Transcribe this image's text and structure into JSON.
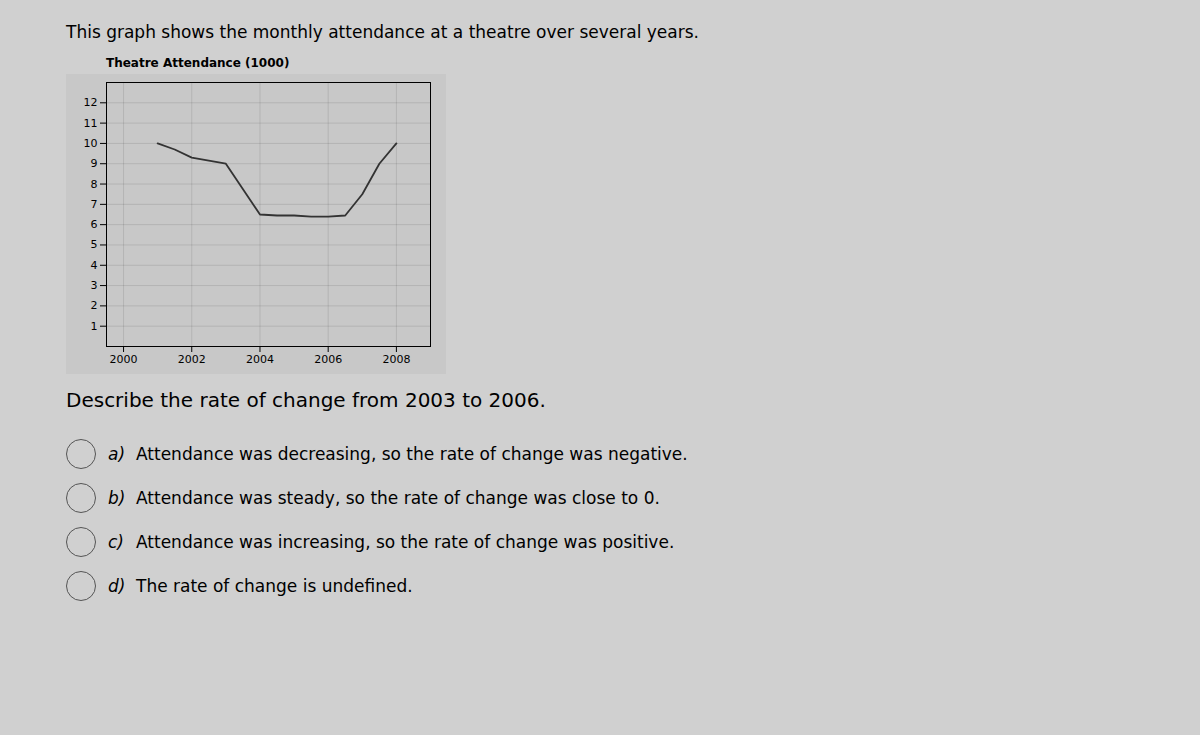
{
  "chart_data": {
    "type": "line",
    "title": "Theatre Attendance (1000)",
    "x": [
      2001,
      2001.5,
      2002,
      2003,
      2004,
      2004.5,
      2005,
      2005.5,
      2006,
      2006.5,
      2007,
      2007.5,
      2008
    ],
    "values": [
      10.0,
      9.7,
      9.3,
      9.0,
      6.5,
      6.45,
      6.45,
      6.4,
      6.4,
      6.45,
      7.5,
      9.0,
      10.0
    ],
    "color": "#333333",
    "xlim": [
      1999.5,
      2009.0
    ],
    "ylim": [
      0,
      13
    ],
    "xticks": [
      2000,
      2002,
      2004,
      2006,
      2008
    ],
    "yticks": [
      1,
      2,
      3,
      4,
      5,
      6,
      7,
      8,
      9,
      10,
      11,
      12
    ],
    "grid": true,
    "annotations": [
      "This graph shows the monthly attendance at a theatre over several years.",
      "Describe the rate of change from 2003 to 2006.",
      {
        "label": "a)",
        "text": "Attendance was decreasing, so the rate of change was negative."
      },
      {
        "label": "b)",
        "text": "Attendance was steady, so the rate of change was close to 0."
      },
      {
        "label": "c)",
        "text": "Attendance was increasing, so the rate of change was positive."
      },
      {
        "label": "d)",
        "text": "The rate of change is undefined."
      }
    ]
  }
}
